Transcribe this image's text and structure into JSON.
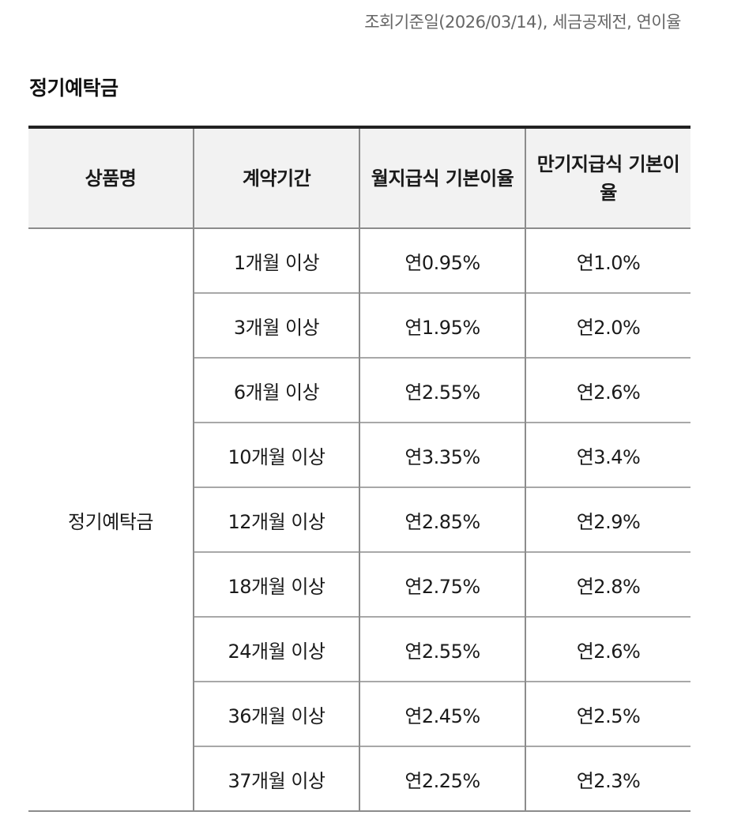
{
  "notice": "조회기준일(2026/03/14), 세금공제전, 연이율",
  "section_title": "정기예탁금",
  "table": {
    "headers": [
      "상품명",
      "계약기간",
      "월지급식 기본이율",
      "만기지급식 기본이율"
    ],
    "product_name": "정기예탁금",
    "rows": [
      {
        "period": "1개월 이상",
        "monthly": "연0.95%",
        "maturity": "연1.0%"
      },
      {
        "period": "3개월 이상",
        "monthly": "연1.95%",
        "maturity": "연2.0%"
      },
      {
        "period": "6개월 이상",
        "monthly": "연2.55%",
        "maturity": "연2.6%"
      },
      {
        "period": "10개월 이상",
        "monthly": "연3.35%",
        "maturity": "연3.4%"
      },
      {
        "period": "12개월 이상",
        "monthly": "연2.85%",
        "maturity": "연2.9%"
      },
      {
        "period": "18개월 이상",
        "monthly": "연2.75%",
        "maturity": "연2.8%"
      },
      {
        "period": "24개월 이상",
        "monthly": "연2.55%",
        "maturity": "연2.6%"
      },
      {
        "period": "36개월 이상",
        "monthly": "연2.45%",
        "maturity": "연2.5%"
      },
      {
        "period": "37개월 이상",
        "monthly": "연2.25%",
        "maturity": "연2.3%"
      }
    ]
  }
}
